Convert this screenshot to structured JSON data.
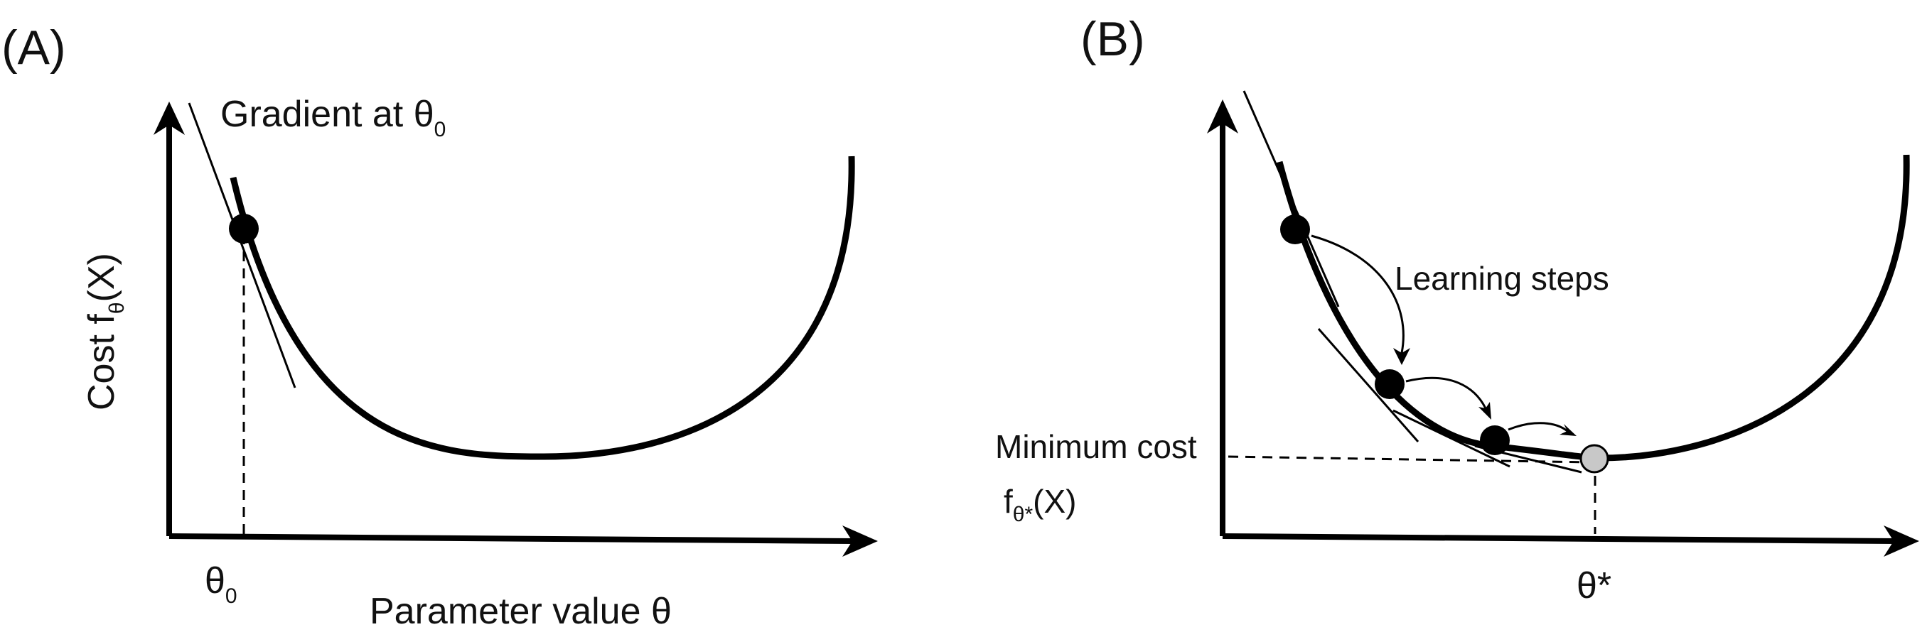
{
  "panel_a": {
    "label": "(A)",
    "y_axis_label_main": "Cost  f",
    "y_axis_label_sub": "θ",
    "y_axis_label_tail": "(X)",
    "x_axis_label": "Parameter value θ",
    "gradient_label_main": "Gradient at θ",
    "gradient_label_sub": "0",
    "theta0_main": "θ",
    "theta0_sub": "0"
  },
  "panel_b": {
    "label": "(B)",
    "steps_label": "Learning steps",
    "min_cost_label": "Minimum cost",
    "min_cost_f_main": "f",
    "min_cost_f_sub": "θ*",
    "min_cost_f_tail": "(X)",
    "theta_star_label": "θ*"
  },
  "colors": {
    "ink": "#000000",
    "optimum_fill": "#c8c8c8"
  }
}
